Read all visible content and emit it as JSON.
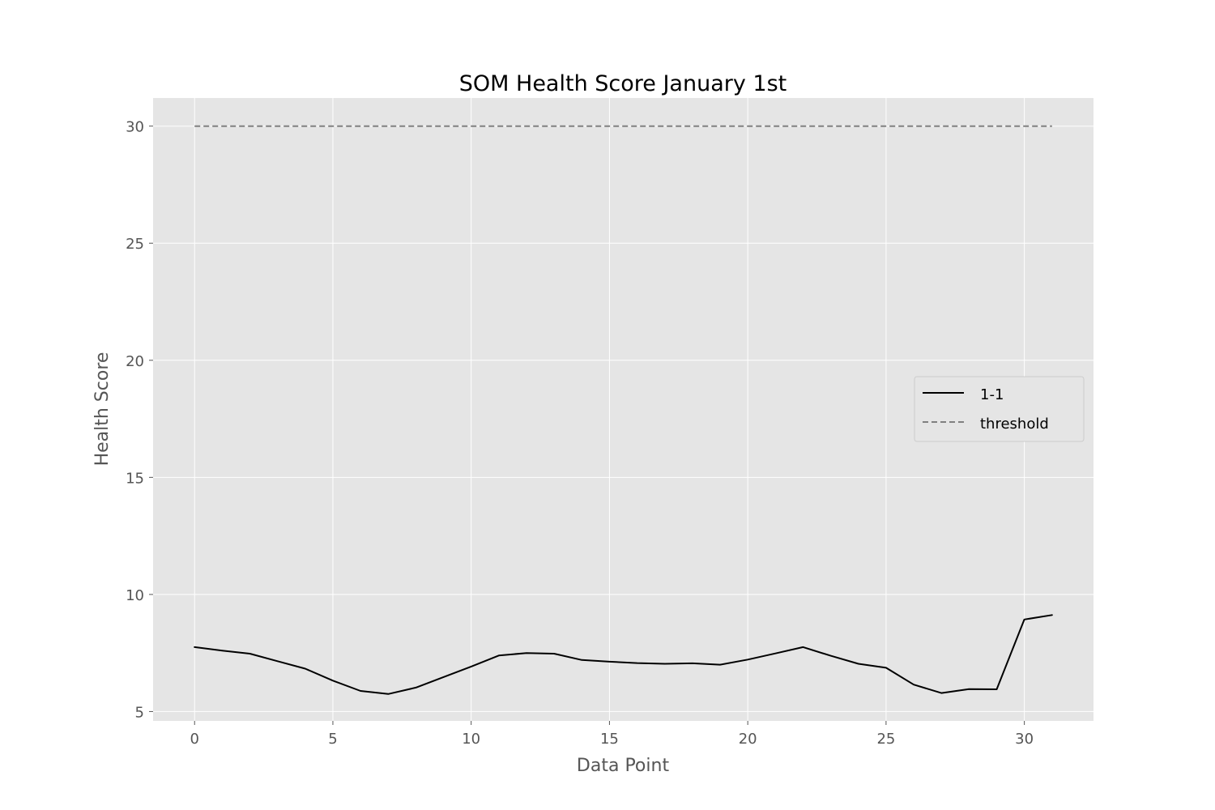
{
  "chart_data": {
    "type": "line",
    "title": "SOM Health Score January 1st",
    "xlabel": "Data Point",
    "ylabel": "Health Score",
    "xlim": [
      -1.5,
      32.5
    ],
    "ylim": [
      4.6,
      31.2
    ],
    "xticks": [
      0,
      5,
      10,
      15,
      20,
      25,
      30
    ],
    "yticks": [
      5,
      10,
      15,
      20,
      25,
      30
    ],
    "grid": true,
    "background": "#e5e5e5",
    "legend_position": "center-right",
    "series": [
      {
        "name": "1-1",
        "color": "#000000",
        "style": "solid",
        "x": [
          0,
          1,
          2,
          3,
          4,
          5,
          6,
          7,
          8,
          9,
          10,
          11,
          12,
          13,
          14,
          15,
          16,
          17,
          18,
          19,
          20,
          21,
          22,
          23,
          24,
          25,
          26,
          27,
          28,
          29,
          30,
          31
        ],
        "values": [
          7.75,
          7.6,
          7.47,
          7.15,
          6.83,
          6.32,
          5.88,
          5.75,
          6.02,
          6.47,
          6.92,
          7.39,
          7.5,
          7.47,
          7.2,
          7.13,
          7.07,
          7.04,
          7.06,
          7.0,
          7.22,
          7.48,
          7.75,
          7.38,
          7.04,
          6.87,
          6.15,
          5.79,
          5.96,
          5.95,
          8.93,
          9.12
        ]
      },
      {
        "name": "threshold",
        "color": "#808080",
        "style": "dashed",
        "x": [
          0,
          31
        ],
        "values": [
          30,
          30
        ]
      }
    ]
  }
}
